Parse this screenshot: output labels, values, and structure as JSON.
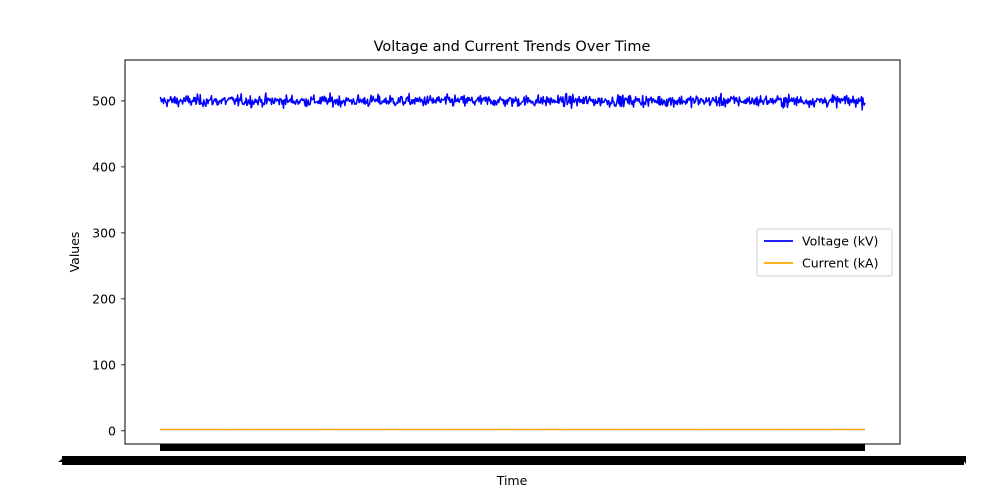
{
  "chart_data": {
    "type": "line",
    "title": "Voltage and Current Trends Over Time",
    "xlabel": "Time",
    "ylabel": "Values",
    "ylim": [
      -20,
      562
    ],
    "yticks": [
      0,
      100,
      200,
      300,
      400,
      500
    ],
    "ytick_labels": [
      "0",
      "100",
      "200",
      "300",
      "400",
      "500"
    ],
    "x_points": 1000,
    "xtick_labels_note": "",
    "legend_position": "center-right",
    "grid": false,
    "series": [
      {
        "name": "Voltage (kV)",
        "color": "#0000ff",
        "mean": 500,
        "noise_range": [
          468,
          535
        ]
      },
      {
        "name": "Current (kA)",
        "color": "#ffa500",
        "mean": 2,
        "noise_range": [
          1.5,
          2.5
        ]
      }
    ]
  }
}
